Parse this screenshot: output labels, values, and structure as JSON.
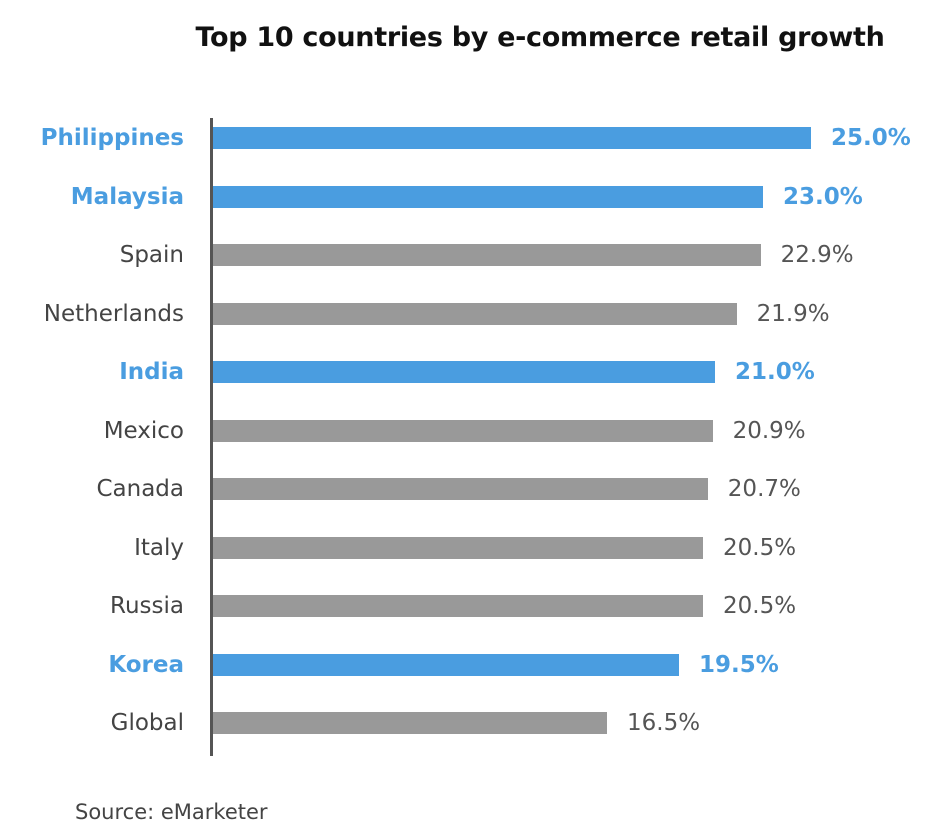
{
  "chart_data": {
    "type": "bar",
    "orientation": "horizontal",
    "title": "Top 10 countries by e-commerce retail growth",
    "categories": [
      "Philippines",
      "Malaysia",
      "Spain",
      "Netherlands",
      "India",
      "Mexico",
      "Canada",
      "Italy",
      "Russia",
      "Korea",
      "Global"
    ],
    "values": [
      25.0,
      23.0,
      22.9,
      21.9,
      21.0,
      20.9,
      20.7,
      20.5,
      20.5,
      19.5,
      16.5
    ],
    "value_labels": [
      "25.0%",
      "23.0%",
      "22.9%",
      "21.9%",
      "21.0%",
      "20.9%",
      "20.7%",
      "20.5%",
      "20.5%",
      "19.5%",
      "16.5%"
    ],
    "highlighted": [
      true,
      true,
      false,
      false,
      true,
      false,
      false,
      false,
      false,
      true,
      false
    ],
    "xlim": [
      0,
      25
    ],
    "grid": false,
    "colors": {
      "highlight": "#4a9de0",
      "default": "#999999"
    }
  },
  "source": "Source: eMarketer"
}
